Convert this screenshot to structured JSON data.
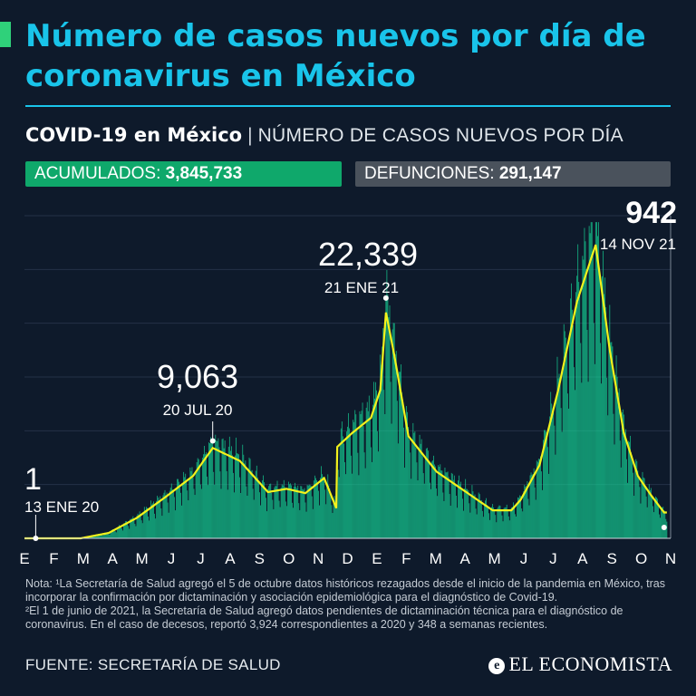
{
  "title": "Número de casos nuevos por día de coronavirus en México",
  "subtitle": {
    "bold": "COVID-19 en México",
    "separator": "|",
    "rest": "NÚMERO DE CASOS NUEVOS POR DÍA"
  },
  "stats": {
    "acumulados_label": "ACUMULADOS:",
    "acumulados_value": "3,845,733",
    "defunciones_label": "DEFUNCIONES:",
    "defunciones_value": "291,147"
  },
  "colors": {
    "background": "#0e1a2b",
    "title": "#19c4ea",
    "bars": "#16d99a",
    "smooth_line": "#f3f21c",
    "acumulados_box": "#0fa86b",
    "defunciones_box": "#4a525c"
  },
  "chart_data": {
    "type": "bar",
    "description_overlay": "line",
    "x_months": [
      "E",
      "F",
      "M",
      "A",
      "M",
      "J",
      "J",
      "A",
      "S",
      "O",
      "N",
      "D",
      "E",
      "F",
      "M",
      "A",
      "M",
      "J",
      "J",
      "A",
      "S",
      "O",
      "N"
    ],
    "ylim": [
      0,
      30000
    ],
    "grid": true,
    "annotations": [
      {
        "value": "1",
        "date": "13 ENE 20",
        "day_index": 12,
        "y": 1
      },
      {
        "value": "9,063",
        "date": "20 JUL 20",
        "day_index": 201,
        "y": 9063
      },
      {
        "value": "22,339",
        "date": "21 ENE 21",
        "day_index": 386,
        "y": 22339
      },
      {
        "value": "942",
        "date": "14 NOV 21",
        "day_index": 683,
        "y": 942
      }
    ],
    "trend_days": [
      0,
      60,
      90,
      120,
      150,
      180,
      201,
      230,
      260,
      280,
      300,
      320,
      333,
      334,
      350,
      370,
      380,
      386,
      395,
      410,
      440,
      470,
      500,
      520,
      530,
      550,
      570,
      590,
      610,
      625,
      640,
      655,
      670,
      683
    ],
    "trend_values": [
      0,
      0,
      500,
      1900,
      3800,
      5800,
      8400,
      7200,
      4300,
      4600,
      4200,
      5600,
      2800,
      8500,
      9800,
      11200,
      13800,
      21000,
      17000,
      9500,
      6200,
      4400,
      2600,
      2600,
      3600,
      6800,
      13800,
      22000,
      27300,
      17500,
      9800,
      5800,
      3900,
      2400
    ]
  },
  "notes": {
    "line1": "Nota: ¹La Secretaría de Salud agregó el 5 de octubre datos históricos rezagados desde el inicio de la pandemia en México, tras incorporar la confirmación por dictaminación y asociación epidemiológica para el diagnóstico de Covid-19.",
    "line2": "²El 1 de junio de 2021, la Secretaría de Salud agregó datos pendientes de dictaminación técnica para el diagnóstico de coronavirus. En el caso de decesos, reportó 3,924 correspondientes a 2020 y 348 a semanas recientes."
  },
  "source": "FUENTE: SECRETARÍA DE SALUD",
  "brand": {
    "icon": "e-logo-icon",
    "icon_glyph": "e",
    "name": "EL ECONOMISTA"
  }
}
